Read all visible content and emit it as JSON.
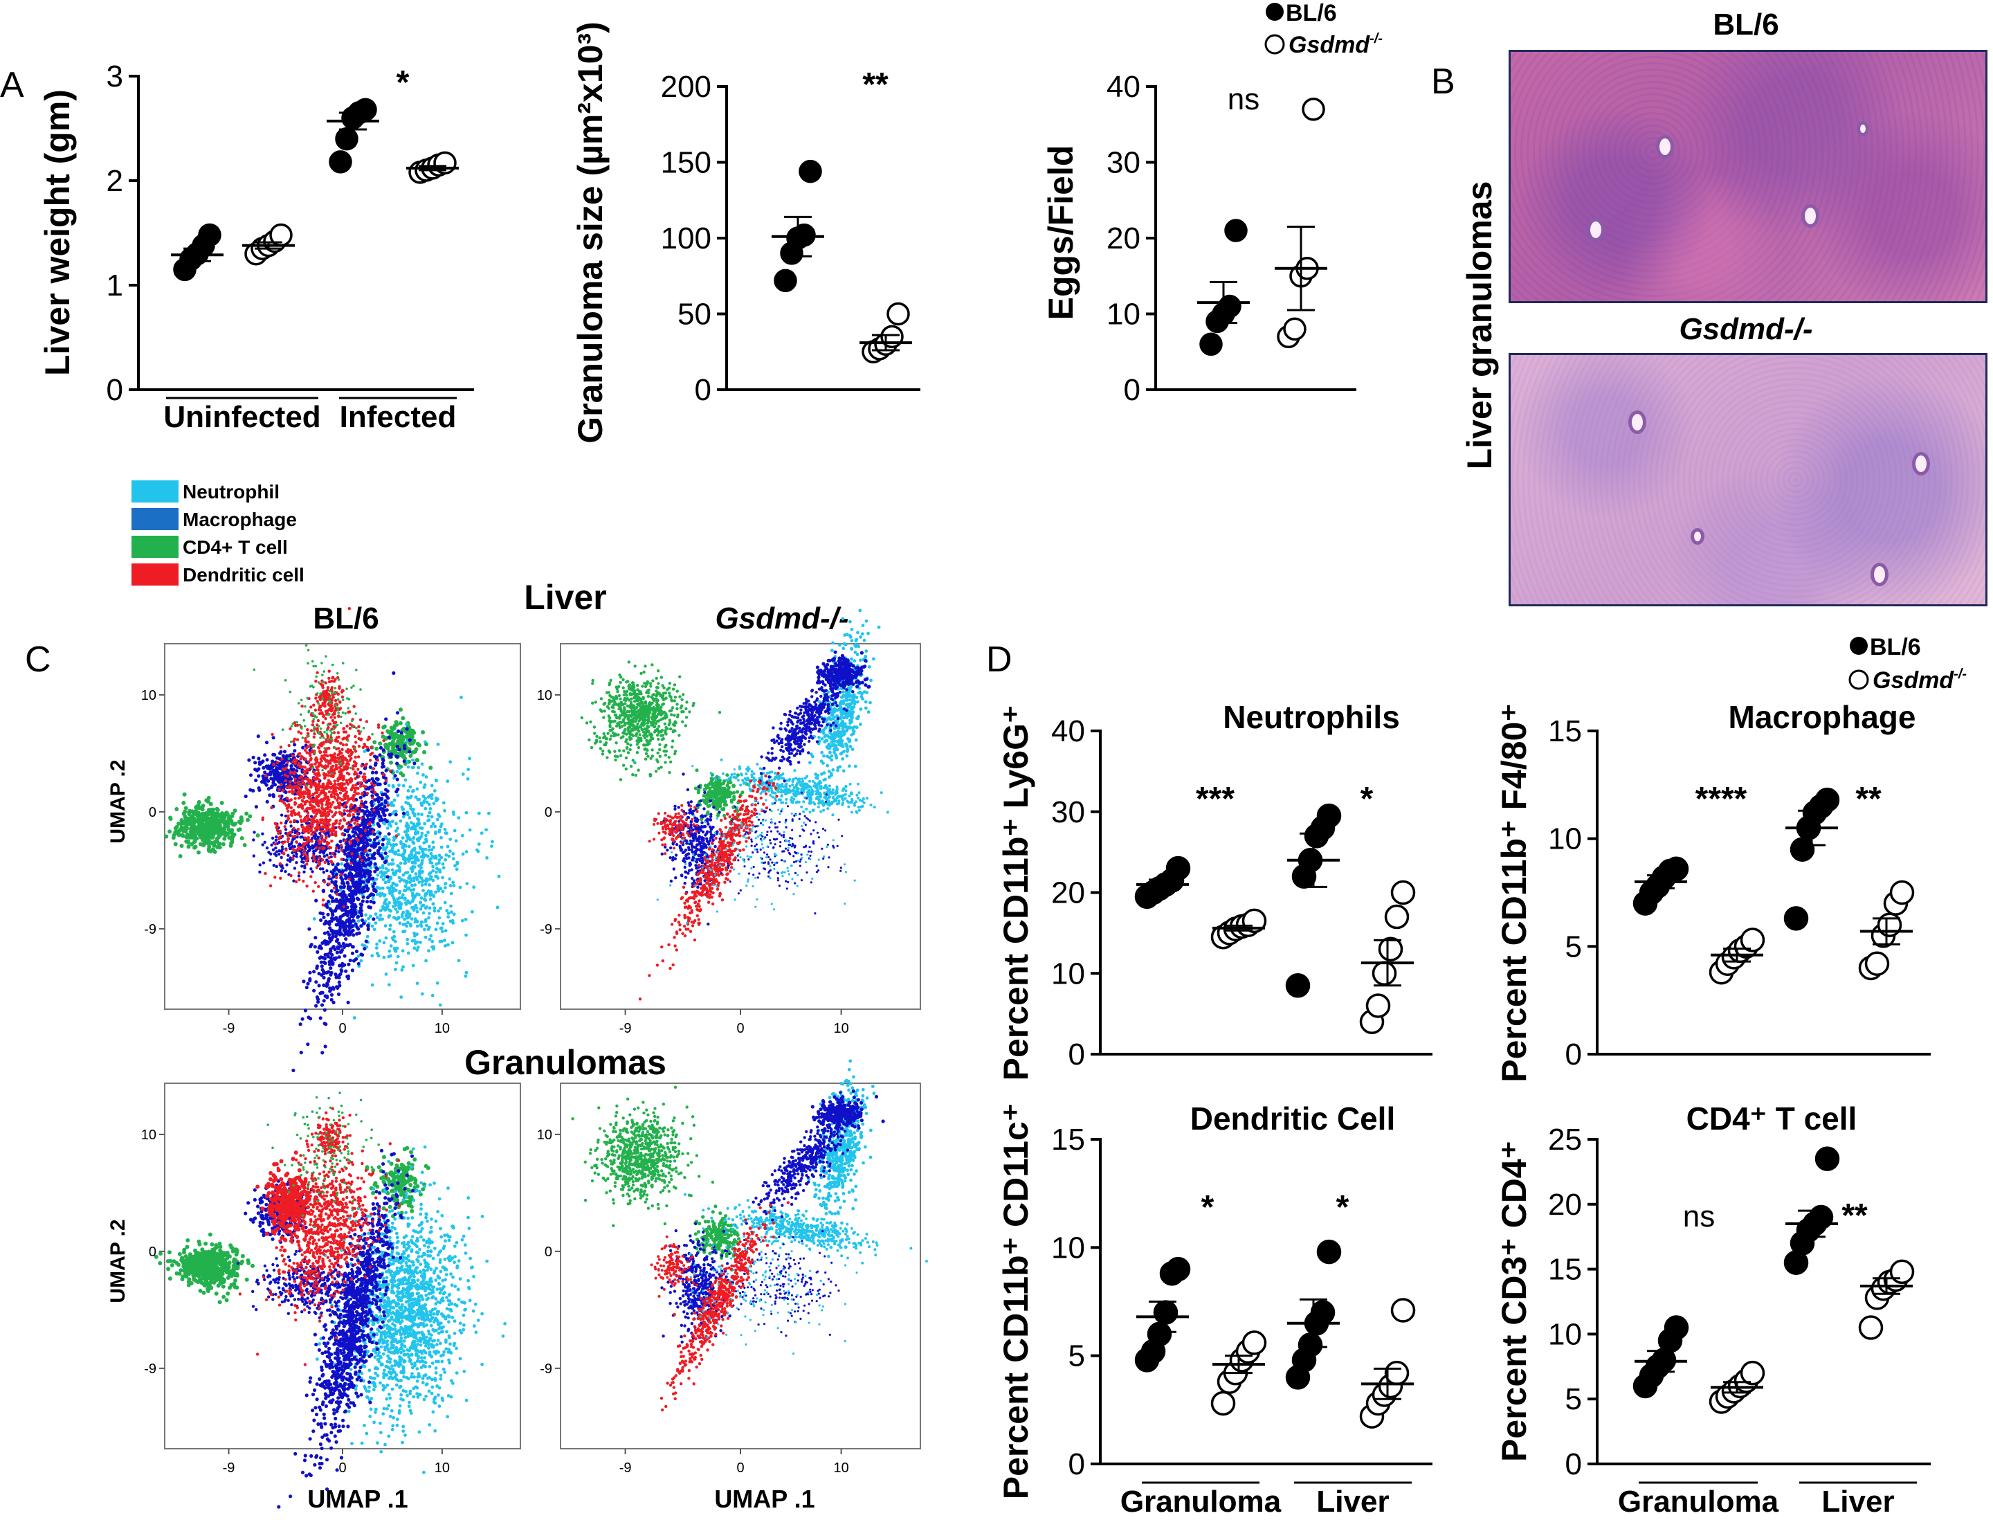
{
  "panel_letters": {
    "A": "A",
    "B": "B",
    "C": "C",
    "D": "D"
  },
  "legend_top": {
    "bl6": "BL/6",
    "ko": "Gsdmd",
    "ko_sup": "-/-"
  },
  "legend_d": {
    "bl6": "BL/6",
    "ko": "Gsdmd",
    "ko_sup": "-/-"
  },
  "cell_legend": [
    {
      "label": "Neutrophil",
      "color": "#22c4ec"
    },
    {
      "label": "Macrophage",
      "color": "#1b6fc4"
    },
    {
      "label": "CD4+ T cell",
      "color": "#22b14c"
    },
    {
      "label": "Dendritic cell",
      "color": "#ee1c24"
    }
  ],
  "panelB": {
    "title_bl6": "BL/6",
    "title_ko": "Gsdmd-/-",
    "side_label": "Liver granulomas"
  },
  "panelC": {
    "top_heading": "Liver",
    "bottom_heading": "Granulomas",
    "col_bl6": "BL/6",
    "col_ko": "Gsdmd-/-",
    "xlabel": "UMAP .1",
    "ylabel": "UMAP .2",
    "ticks_x": [
      "-9",
      "0",
      "10"
    ],
    "ticks_y": [
      "10",
      "0",
      "-9"
    ]
  },
  "colors": {
    "neutrophil": "#22c4ec",
    "macrophage": "#1b6fc4",
    "cd4": "#22b14c",
    "dc": "#ee1c24",
    "umap_blue": "#1010c8"
  },
  "chart_data": [
    {
      "id": "A1",
      "type": "scatter",
      "ylabel": "Liver weight (gm)",
      "ylim": [
        0,
        3
      ],
      "yticks": [
        0,
        1,
        2,
        3
      ],
      "group_labels": [
        "Uninfected",
        "Infected"
      ],
      "significance": [
        {
          "between": [
            2,
            3
          ],
          "label": "*"
        }
      ],
      "series": [
        {
          "name": "BL/6",
          "category": 0,
          "values": [
            1.15,
            1.25,
            1.3,
            1.38,
            1.48
          ],
          "mean": 1.29,
          "sem": 0.06
        },
        {
          "name": "Gsdmd-/-",
          "category": 1,
          "values": [
            1.3,
            1.35,
            1.38,
            1.42,
            1.48
          ],
          "mean": 1.38,
          "sem": 0.03
        },
        {
          "name": "BL/6",
          "category": 2,
          "values": [
            2.18,
            2.4,
            2.6,
            2.65,
            2.68
          ],
          "mean": 2.57,
          "sem": 0.08
        },
        {
          "name": "Gsdmd-/-",
          "category": 3,
          "values": [
            2.08,
            2.1,
            2.12,
            2.15,
            2.17
          ],
          "mean": 2.12,
          "sem": 0.02
        }
      ]
    },
    {
      "id": "A2",
      "type": "scatter",
      "ylabel": "Granuloma size (µm²x10³)",
      "ylim": [
        0,
        200
      ],
      "yticks": [
        0,
        50,
        100,
        150,
        200
      ],
      "significance": [
        {
          "label": "**"
        }
      ],
      "series": [
        {
          "name": "BL/6",
          "category": 0,
          "values": [
            72,
            90,
            100,
            102,
            144
          ],
          "mean": 101,
          "sem": 13
        },
        {
          "name": "Gsdmd-/-",
          "category": 1,
          "values": [
            25,
            27,
            30,
            35,
            50
          ],
          "mean": 31,
          "sem": 5
        }
      ]
    },
    {
      "id": "A3",
      "type": "scatter",
      "ylabel": "Eggs/Field",
      "ylim": [
        0,
        40
      ],
      "yticks": [
        0,
        10,
        20,
        30,
        40
      ],
      "significance": [
        {
          "label": "ns"
        }
      ],
      "series": [
        {
          "name": "BL/6",
          "category": 0,
          "values": [
            6,
            9,
            10,
            11,
            21
          ],
          "mean": 11.5,
          "sem": 2.7
        },
        {
          "name": "Gsdmd-/-",
          "category": 1,
          "values": [
            7,
            8,
            15,
            16,
            37
          ],
          "mean": 16,
          "sem": 5.5
        }
      ]
    },
    {
      "id": "D1",
      "type": "scatter",
      "title": "Neutrophils",
      "ylabel": "Percent CD11b⁺ Ly6G⁺",
      "ylim": [
        0,
        40
      ],
      "yticks": [
        0,
        10,
        20,
        30,
        40
      ],
      "group_labels": [
        "Granuloma",
        "Liver"
      ],
      "significance": [
        {
          "label": "***"
        },
        {
          "label": "*"
        }
      ],
      "series": [
        {
          "name": "BL/6",
          "category": 0,
          "values": [
            19.5,
            20,
            20.5,
            21,
            21.5,
            23
          ],
          "mean": 21,
          "sem": 0.6
        },
        {
          "name": "Gsdmd-/-",
          "category": 1,
          "values": [
            14.5,
            15,
            15.5,
            15.8,
            16,
            16.5
          ],
          "mean": 15.6,
          "sem": 0.3
        },
        {
          "name": "BL/6",
          "category": 2,
          "values": [
            8.5,
            22,
            24,
            27,
            28,
            29.5
          ],
          "mean": 24,
          "sem": 3.3
        },
        {
          "name": "Gsdmd-/-",
          "category": 3,
          "values": [
            4,
            6,
            10,
            13,
            17,
            20
          ],
          "mean": 11.3,
          "sem": 2.8
        }
      ]
    },
    {
      "id": "D2",
      "type": "scatter",
      "title": "Macrophage",
      "ylabel": "Percent CD11b⁺ F4/80⁺",
      "ylim": [
        0,
        15
      ],
      "yticks": [
        0,
        5,
        10,
        15
      ],
      "significance": [
        {
          "label": "****"
        },
        {
          "label": "**"
        }
      ],
      "series": [
        {
          "name": "BL/6",
          "category": 0,
          "values": [
            7,
            7.5,
            7.8,
            8.2,
            8.5,
            8.6
          ],
          "mean": 8.0,
          "sem": 0.3
        },
        {
          "name": "Gsdmd-/-",
          "category": 1,
          "values": [
            3.8,
            4.2,
            4.5,
            4.8,
            5.0,
            5.3
          ],
          "mean": 4.6,
          "sem": 0.3
        },
        {
          "name": "BL/6",
          "category": 2,
          "values": [
            6.3,
            9.5,
            10.5,
            11.2,
            11.5,
            11.8
          ],
          "mean": 10.5,
          "sem": 0.8
        },
        {
          "name": "Gsdmd-/-",
          "category": 3,
          "values": [
            4,
            4.2,
            5.5,
            6.0,
            7.0,
            7.5
          ],
          "mean": 5.7,
          "sem": 0.6
        }
      ]
    },
    {
      "id": "D3",
      "type": "scatter",
      "title": "Dendritic Cell",
      "ylabel": "Percent CD11b⁺ CD11c⁺",
      "ylim": [
        0,
        15
      ],
      "yticks": [
        0,
        5,
        10,
        15
      ],
      "group_labels": [
        "Granuloma",
        "Liver"
      ],
      "significance": [
        {
          "label": "*"
        },
        {
          "label": "*"
        }
      ],
      "series": [
        {
          "name": "BL/6",
          "category": 0,
          "values": [
            4.8,
            5.2,
            6.0,
            7.0,
            8.8,
            9.0
          ],
          "mean": 6.8,
          "sem": 0.7
        },
        {
          "name": "Gsdmd-/-",
          "category": 1,
          "values": [
            2.8,
            3.8,
            4.2,
            4.8,
            5.2,
            5.6
          ],
          "mean": 4.6,
          "sem": 0.4
        },
        {
          "name": "BL/6",
          "category": 2,
          "values": [
            4.0,
            4.8,
            5.5,
            6.5,
            7.0,
            9.8
          ],
          "mean": 6.5,
          "sem": 1.1
        },
        {
          "name": "Gsdmd-/-",
          "category": 3,
          "values": [
            2.2,
            2.8,
            3.2,
            3.6,
            4.2,
            7.1
          ],
          "mean": 3.7,
          "sem": 0.7
        }
      ]
    },
    {
      "id": "D4",
      "type": "scatter",
      "title": "CD4⁺ T cell",
      "ylabel": "Percent CD3⁺ CD4⁺",
      "ylim": [
        0,
        25
      ],
      "yticks": [
        0,
        5,
        10,
        15,
        20,
        25
      ],
      "group_labels": [
        "Granuloma",
        "Liver"
      ],
      "significance": [
        {
          "label": "ns"
        },
        {
          "label": "**"
        }
      ],
      "series": [
        {
          "name": "BL/6",
          "category": 0,
          "values": [
            6,
            6.8,
            7.5,
            8.0,
            9.5,
            10.5
          ],
          "mean": 7.9,
          "sem": 0.8
        },
        {
          "name": "Gsdmd-/-",
          "category": 1,
          "values": [
            4.8,
            5.2,
            5.6,
            6.0,
            6.4,
            7.0
          ],
          "mean": 5.9,
          "sem": 0.4
        },
        {
          "name": "BL/6",
          "category": 2,
          "values": [
            15.5,
            17,
            18,
            18.5,
            19,
            23.5
          ],
          "mean": 18.5,
          "sem": 1.0
        },
        {
          "name": "Gsdmd-/-",
          "category": 3,
          "values": [
            10.5,
            12.8,
            13.5,
            14,
            14.2,
            14.8
          ],
          "mean": 13.7,
          "sem": 0.6
        }
      ]
    }
  ]
}
